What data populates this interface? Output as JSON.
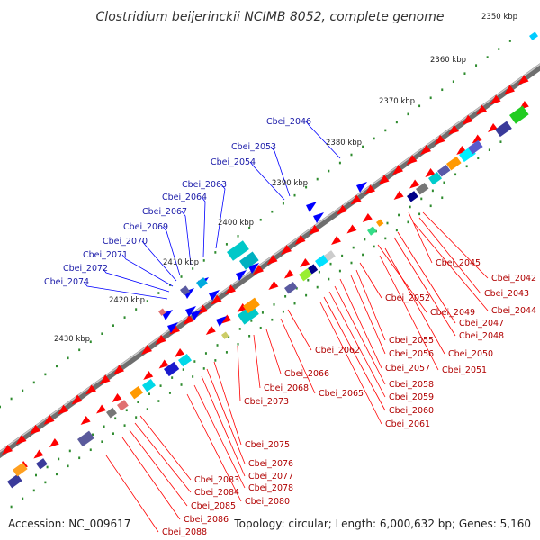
{
  "title": "Clostridium beijerinckii NCIMB 8052, complete genome",
  "footer": {
    "accession": "Accession: NC_009617",
    "summary": "Topology: circular; Length: 6,000,632 bp; Genes: 5,160"
  },
  "colors": {
    "forward": "#ff0000",
    "reverse": "#0000ff",
    "backbone": "#808080",
    "label_forward": "#b00000",
    "label_reverse": "#1a1aa8",
    "tick": "#2e8b2e"
  },
  "scale_ticks": [
    "2350 kbp",
    "2360 kbp",
    "2370 kbp",
    "2380 kbp",
    "2390 kbp",
    "2400 kbp",
    "2410 kbp",
    "2420 kbp",
    "2430 kbp"
  ],
  "genes_reverse": [
    "Cbei_2046",
    "Cbei_2053",
    "Cbei_2054",
    "Cbei_2063",
    "Cbei_2064",
    "Cbei_2067",
    "Cbei_2069",
    "Cbei_2070",
    "Cbei_2071",
    "Cbei_2072",
    "Cbei_2074"
  ],
  "genes_forward": [
    "Cbei_2042",
    "Cbei_2043",
    "Cbei_2044",
    "Cbei_2045",
    "Cbei_2047",
    "Cbei_2048",
    "Cbei_2049",
    "Cbei_2050",
    "Cbei_2051",
    "Cbei_2052",
    "Cbei_2055",
    "Cbei_2056",
    "Cbei_2057",
    "Cbei_2058",
    "Cbei_2059",
    "Cbei_2060",
    "Cbei_2061",
    "Cbei_2062",
    "Cbei_2065",
    "Cbei_2066",
    "Cbei_2068",
    "Cbei_2073",
    "Cbei_2075",
    "Cbei_2076",
    "Cbei_2077",
    "Cbei_2078",
    "Cbei_2080",
    "Cbei_2083",
    "Cbei_2084",
    "Cbei_2085",
    "Cbei_2086",
    "Cbei_2088"
  ]
}
